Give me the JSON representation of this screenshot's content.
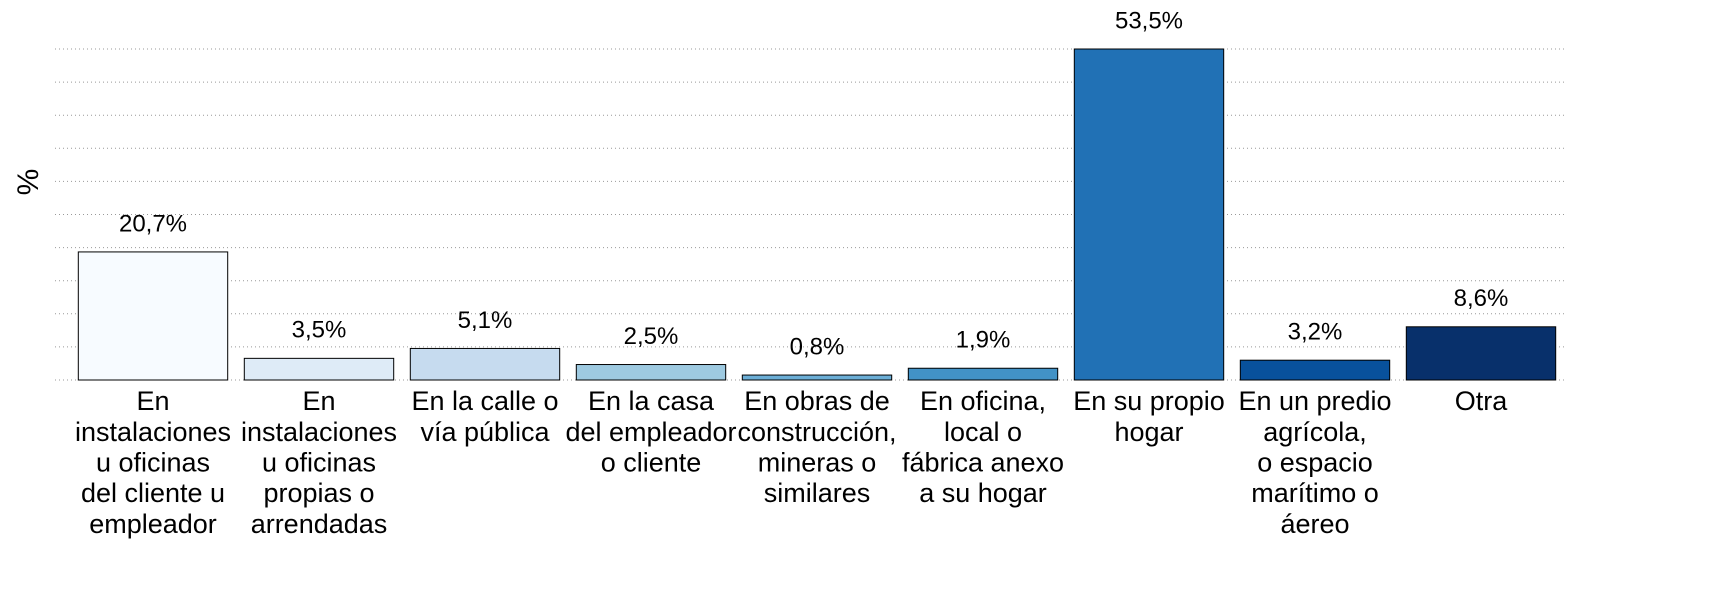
{
  "chart_data": {
    "type": "bar",
    "ylabel": "%",
    "categories": [
      [
        "En",
        "instalaciones",
        "u oficinas",
        "del cliente u",
        "empleador"
      ],
      [
        "En",
        "instalaciones",
        "u oficinas",
        "propias o",
        "arrendadas"
      ],
      [
        "En la calle o",
        "vía pública"
      ],
      [
        "En la casa",
        "del empleador",
        "o cliente"
      ],
      [
        "En obras de",
        "construcción,",
        "mineras o",
        "similares"
      ],
      [
        "En oficina,",
        "local o",
        "fábrica anexo",
        "a su hogar"
      ],
      [
        "En su propio",
        "hogar"
      ],
      [
        "En un predio",
        "agrícola,",
        "o espacio",
        "marítimo o",
        "áereo"
      ],
      [
        "Otra"
      ]
    ],
    "values": [
      20.7,
      3.5,
      5.1,
      2.5,
      0.8,
      1.9,
      53.5,
      3.2,
      8.6
    ],
    "value_labels": [
      "20,7%",
      "3,5%",
      "5,1%",
      "2,5%",
      "0,8%",
      "1,9%",
      "53,5%",
      "3,2%",
      "8,6%"
    ],
    "colors": [
      "#f7fbff",
      "#deebf7",
      "#c6dbef",
      "#9ecae1",
      "#6baed6",
      "#4292c6",
      "#2171b5",
      "#08519c",
      "#08306b"
    ],
    "ylim": [
      0,
      53.5
    ],
    "yticks": [
      0,
      5.35,
      10.7,
      16.05,
      21.4,
      26.75,
      32.1,
      37.45,
      42.8,
      48.15,
      53.5
    ],
    "grid": true
  }
}
